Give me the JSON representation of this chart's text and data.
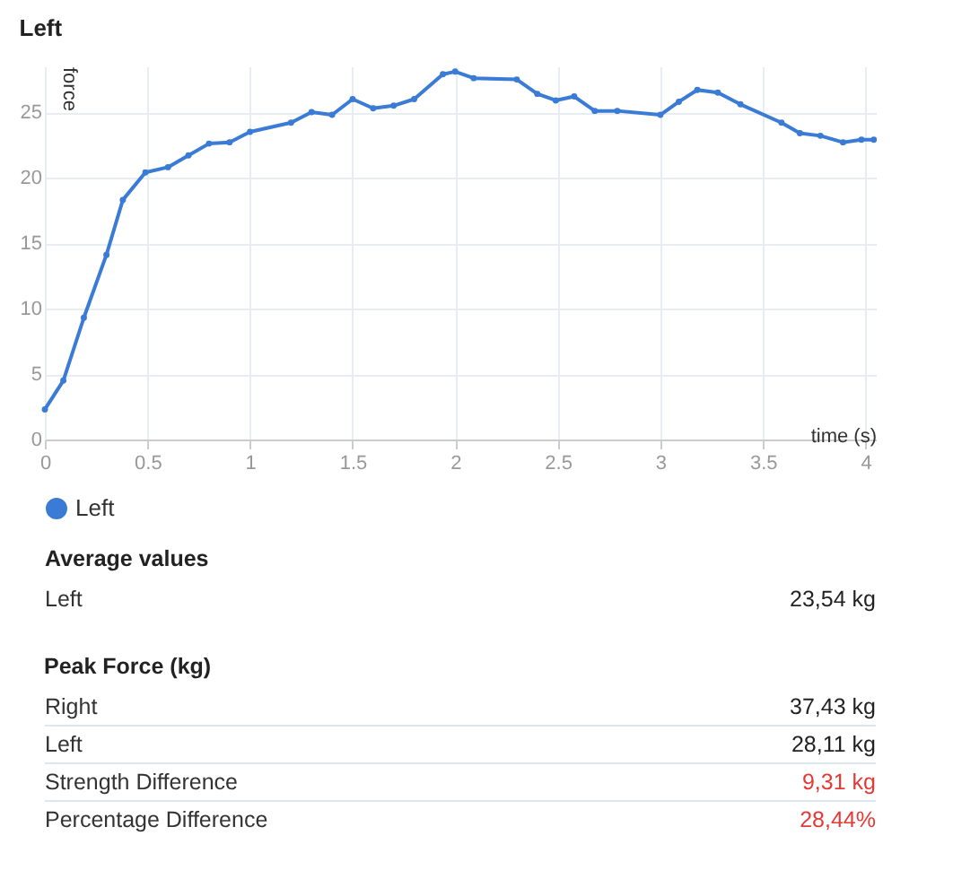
{
  "chart_data": [
    {
      "type": "line",
      "title": "Left",
      "xlabel": "time (s)",
      "ylabel": "force",
      "x": [
        0,
        0.09,
        0.19,
        0.3,
        0.38,
        0.49,
        0.6,
        0.7,
        0.8,
        0.9,
        1.0,
        1.2,
        1.3,
        1.4,
        1.5,
        1.6,
        1.7,
        1.8,
        1.94,
        2.0,
        2.09,
        2.3,
        2.4,
        2.49,
        2.58,
        2.68,
        2.79,
        3.0,
        3.09,
        3.18,
        3.28,
        3.39,
        3.59,
        3.68,
        3.78,
        3.89,
        3.98,
        4.04
      ],
      "series": [
        {
          "name": "Left",
          "color": "#3a7bd5",
          "values": [
            2.3,
            4.5,
            9.3,
            14.1,
            18.3,
            20.4,
            20.8,
            21.7,
            22.6,
            22.7,
            23.5,
            24.2,
            25.0,
            24.8,
            26.0,
            25.3,
            25.5,
            26.0,
            27.9,
            28.1,
            27.6,
            27.5,
            26.4,
            25.9,
            26.2,
            25.1,
            25.1,
            24.8,
            25.8,
            26.7,
            26.5,
            25.6,
            24.2,
            23.4,
            23.2,
            22.7,
            22.9,
            22.9
          ]
        }
      ],
      "xlim": [
        0,
        4.05
      ],
      "xticks": [
        0,
        0.5,
        1,
        1.5,
        2,
        2.5,
        3,
        3.5,
        4
      ],
      "ylim": [
        0,
        28.5
      ],
      "yticks": [
        0,
        5,
        10,
        15,
        20,
        25
      ],
      "grid": true,
      "legend": "bottom left",
      "marker": "circle",
      "line_style": "solid"
    },
    {
      "type": "other",
      "title": "Average values",
      "categories": [
        "Left"
      ],
      "value_labels": [
        "23,54 kg"
      ],
      "colors": [
        "#222222"
      ]
    },
    {
      "type": "other",
      "title": "Peak Force (kg)",
      "categories": [
        "Right",
        "Left",
        "Strength Difference",
        "Percentage Difference"
      ],
      "value_labels": [
        "37,43 kg",
        "28,11 kg",
        "9,31 kg",
        "28,44%"
      ],
      "colors": [
        "#222222",
        "#222222",
        "#e53935",
        "#e53935"
      ]
    }
  ]
}
